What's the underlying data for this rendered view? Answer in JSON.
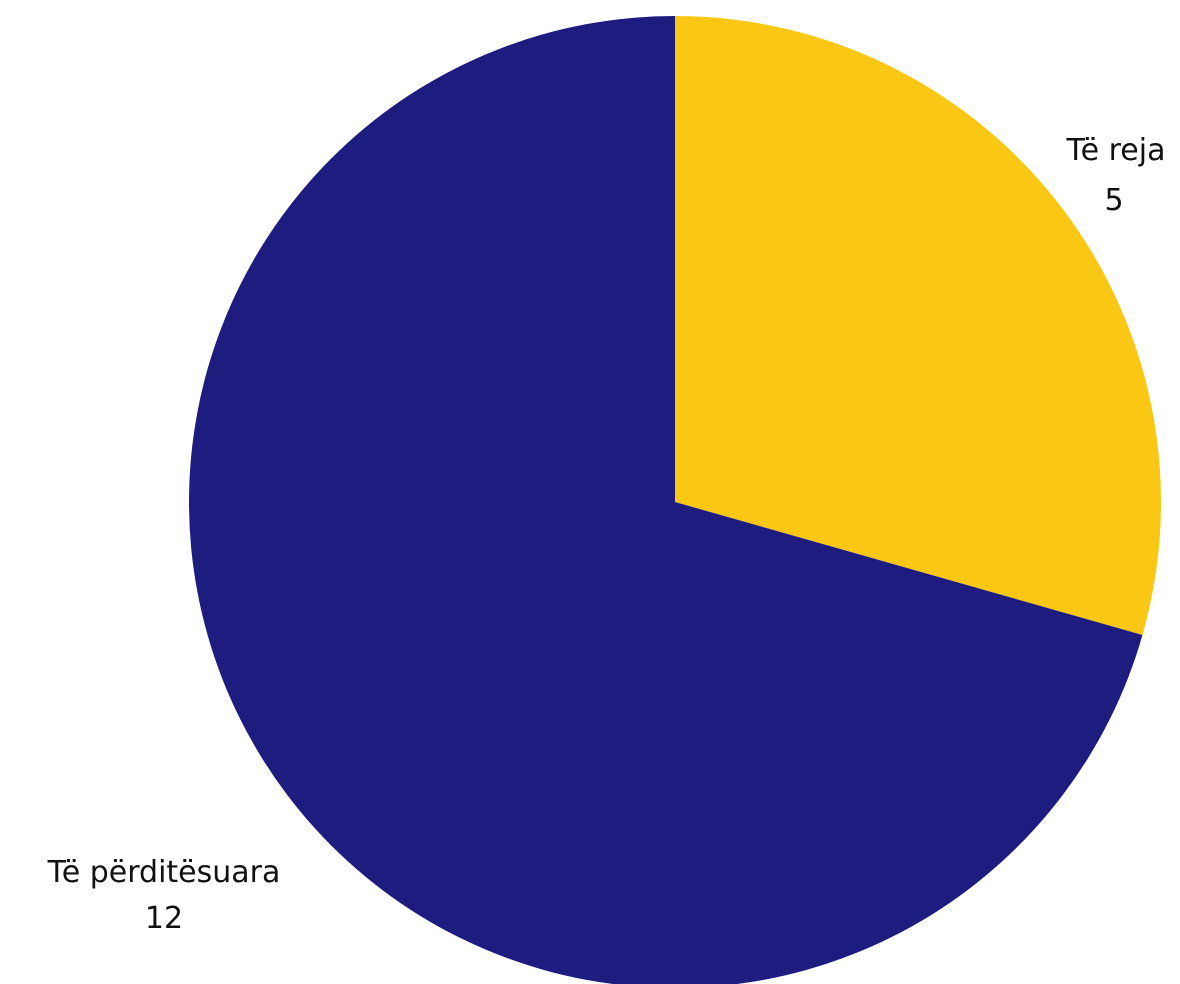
{
  "chart_data": {
    "type": "pie",
    "slices": [
      {
        "label": "Të reja",
        "value": 5,
        "value_label": "5",
        "color": "#FAC814"
      },
      {
        "label": "Të përditësuara",
        "value": 12,
        "value_label": "12",
        "color": "#1E1C7E"
      }
    ]
  }
}
